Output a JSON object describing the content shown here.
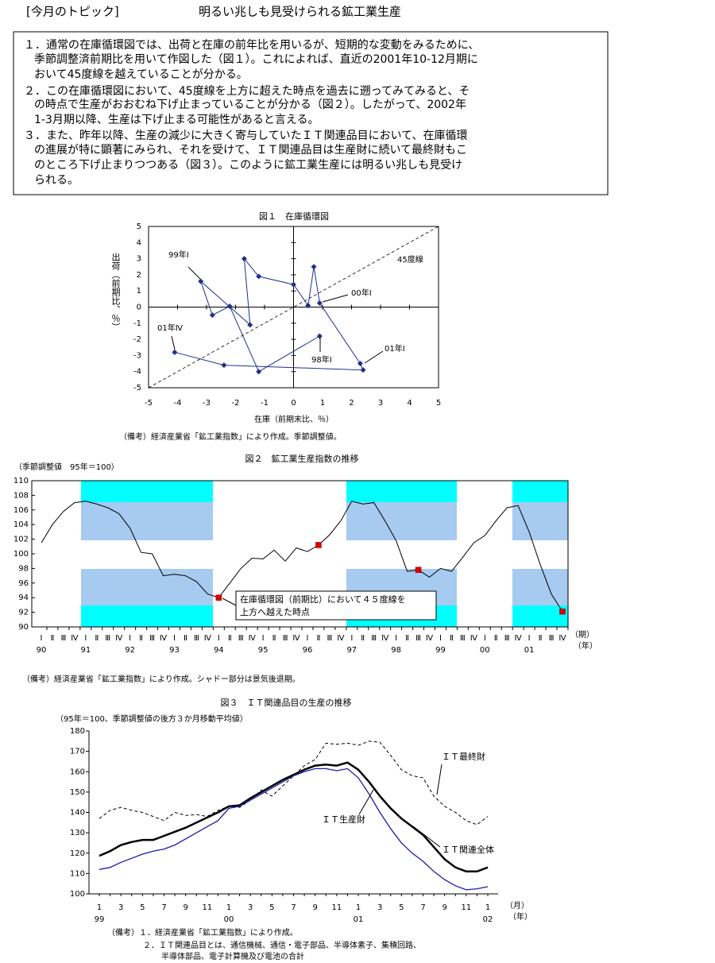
{
  "header": {
    "label": "[今月のトピック]",
    "title": "明るい兆しも見受けられる鉱工業生産"
  },
  "items": [
    {
      "lines": [
        "１．通常の在庫循環図では、出荷と在庫の前年比を用いるが、短期的な変動をみるために、",
        "季節調整済前期比を用いて作図した（図１）。これによれば、直近の2001年10-12月期に",
        "おいて45度線を越えていることが分かる。"
      ]
    },
    {
      "lines": [
        "２．この在庫循環図において、45度線を上方に超えた時点を過去に遡ってみてみると、そ",
        "の時点で生産がおおむね下げ止まっていることが分かる（図２）。したがって、2002年",
        "1-3月期以降、生産は下げ止まる可能性があると言える。"
      ]
    },
    {
      "lines": [
        "３．また、昨年以降、生産の減少に大きく寄与していたＩＴ関連品目において、在庫循環",
        "の進展が特に顕著にみられ、それを受けて、ＩＴ関連品目は生産財に続いて最終財もこ",
        "のところ下げ止まりつつある（図３）。このように鉱工業生産には明るい兆しも見受け",
        "られる。"
      ]
    }
  ],
  "chart_data": [
    {
      "type": "scatter",
      "title": "図１　在庫循環図",
      "xlabel": "在庫（前期末比、％）",
      "ylabel": "出荷（前期比、％）",
      "color": "#1f2f8f",
      "x": [
        0.9,
        -1.2,
        -2.2,
        -2.8,
        -3.2,
        -1.5,
        -1.7,
        -1.2,
        0,
        0.5,
        0.7,
        0.9,
        2.3,
        2.4,
        -2.4,
        -4.1
      ],
      "values": [
        -1.8,
        -4.0,
        0.05,
        -0.5,
        1.6,
        -1.1,
        3.0,
        1.9,
        1.4,
        0.1,
        2.5,
        0.25,
        -3.5,
        -3.9,
        -3.6,
        -2.8
      ],
      "xlim": [
        -5,
        5
      ],
      "ylim": [
        -5,
        5
      ],
      "xticks": [
        -5,
        -4,
        -3,
        -2,
        -1,
        0,
        1,
        2,
        3,
        4,
        5
      ],
      "yticks": [
        -5,
        -4,
        -3,
        -2,
        -1,
        0,
        1,
        2,
        3,
        4,
        5
      ],
      "annotations": [
        "45度線",
        "99年Ⅰ",
        "00年Ⅰ",
        "01年Ⅰ",
        "98年Ⅰ",
        "01年Ⅳ"
      ],
      "note": "（備考）経済産業省「鉱工業指数」により作成。季節調整値。"
    },
    {
      "type": "line",
      "title": "図２　鉱工業生産指数の推移",
      "ylabel": "（季節調整値　95年＝100）",
      "color": "#000000",
      "marker_color": "#e00000",
      "categories": [
        "Ⅰ",
        "Ⅱ",
        "Ⅲ",
        "Ⅳ",
        "Ⅰ",
        "Ⅱ",
        "Ⅲ",
        "Ⅳ",
        "Ⅰ",
        "Ⅱ",
        "Ⅲ",
        "Ⅳ",
        "Ⅰ",
        "Ⅱ",
        "Ⅲ",
        "Ⅳ",
        "Ⅰ",
        "Ⅱ",
        "Ⅲ",
        "Ⅳ",
        "Ⅰ",
        "Ⅱ",
        "Ⅲ",
        "Ⅳ",
        "Ⅰ",
        "Ⅱ",
        "Ⅲ",
        "Ⅳ",
        "Ⅰ",
        "Ⅱ",
        "Ⅲ",
        "Ⅳ",
        "Ⅰ",
        "Ⅱ",
        "Ⅲ",
        "Ⅳ",
        "Ⅰ",
        "Ⅱ",
        "Ⅲ",
        "Ⅳ",
        "Ⅰ",
        "Ⅱ",
        "Ⅲ",
        "Ⅳ",
        "Ⅰ",
        "Ⅱ",
        "Ⅲ",
        "Ⅳ"
      ],
      "years": [
        "90",
        "91",
        "92",
        "93",
        "94",
        "95",
        "96",
        "97",
        "98",
        "99",
        "00",
        "01"
      ],
      "values": [
        101.5,
        104.0,
        105.8,
        107.0,
        107.2,
        106.8,
        106.3,
        105.5,
        103.5,
        100.2,
        100.0,
        97.0,
        97.2,
        97.0,
        96.2,
        94.5,
        94.0,
        96.0,
        98.0,
        99.4,
        99.3,
        100.5,
        99.0,
        100.8,
        100.3,
        101.2,
        102.6,
        104.5,
        107.2,
        106.8,
        107.0,
        104.5,
        101.8,
        97.6,
        97.8,
        96.8,
        98.0,
        97.6,
        99.5,
        101.5,
        102.5,
        104.5,
        106.3,
        106.6,
        103.0,
        98.5,
        94.5,
        92.1
      ],
      "markers": [
        16,
        25,
        34,
        47
      ],
      "ylim": [
        90,
        110
      ],
      "yticks": [
        90,
        92,
        94,
        96,
        98,
        100,
        102,
        104,
        106,
        108,
        110
      ],
      "x_units": [
        "（期）",
        "（年）"
      ],
      "annotation": [
        "在庫循環図（前期比）において４５度線を",
        "上方へ越えた時点"
      ],
      "note": "（備考）経済産業省「鉱工業指数」により作成。シャドー部分は景気後退期。"
    },
    {
      "type": "line",
      "title": "図３　ＩＴ関連品目の生産の推移",
      "subtitle": "（95年＝100、季節調整値の後方３か月移動平均値）",
      "categories": [
        "1",
        null,
        "3",
        null,
        "5",
        null,
        "7",
        null,
        "9",
        null,
        "11",
        null,
        "1",
        null,
        "3",
        null,
        "5",
        null,
        "7",
        null,
        "9",
        null,
        "11",
        null,
        "1",
        null,
        "3",
        null,
        "5",
        null,
        "7",
        null,
        "9",
        null,
        "11",
        null,
        "1"
      ],
      "years": [
        "99",
        "00",
        "01",
        "02"
      ],
      "series": [
        {
          "name": "ＩＴ最終財",
          "color": "#000000",
          "dashed": true,
          "width": 1,
          "values": [
            137,
            141,
            142.5,
            141,
            140,
            138,
            136,
            140,
            138.5,
            139,
            138,
            141,
            143,
            142.5,
            146,
            151,
            148,
            153,
            158,
            163,
            166,
            174,
            173.5,
            174,
            173,
            175,
            174.5,
            168,
            161,
            158,
            157,
            148,
            143,
            140,
            136,
            134,
            138
          ]
        },
        {
          "name": "ＩＴ関連全体",
          "color": "#000000",
          "dashed": false,
          "width": 2.5,
          "values": [
            118.7,
            121,
            124,
            125.5,
            126.5,
            126.5,
            128.5,
            130.5,
            132.5,
            135,
            137.5,
            140,
            143,
            143.5,
            147,
            150,
            153,
            156,
            158.5,
            161,
            163,
            163.5,
            163,
            164.5,
            161,
            155,
            148,
            142,
            137,
            133,
            129,
            123,
            117,
            113,
            111,
            111,
            113
          ]
        },
        {
          "name": "ＩＴ生産財",
          "color": "#1a1ab0",
          "dashed": false,
          "width": 1.3,
          "values": [
            112,
            113,
            115.5,
            117.5,
            119.5,
            121,
            122,
            124,
            127,
            130,
            133,
            136,
            142,
            143,
            146,
            149,
            152,
            155,
            158,
            160,
            161.5,
            161.5,
            160.5,
            161.5,
            157,
            149,
            140,
            132,
            125,
            120,
            116,
            111,
            107,
            104,
            102,
            102.5,
            103.5
          ]
        }
      ],
      "ylim": [
        100,
        180
      ],
      "yticks": [
        100,
        110,
        120,
        130,
        140,
        150,
        160,
        170,
        180
      ],
      "x_units": [
        "（月）",
        "（年）"
      ],
      "notes": [
        "（備考）１．経済産業省「鉱工業指数」により作成。",
        "２．ＩＴ関連品目とは、通信機械、通信・電子部品、半導体素子、集積回路、",
        "半導体部品、電子計算機及び電池の合計"
      ]
    }
  ]
}
